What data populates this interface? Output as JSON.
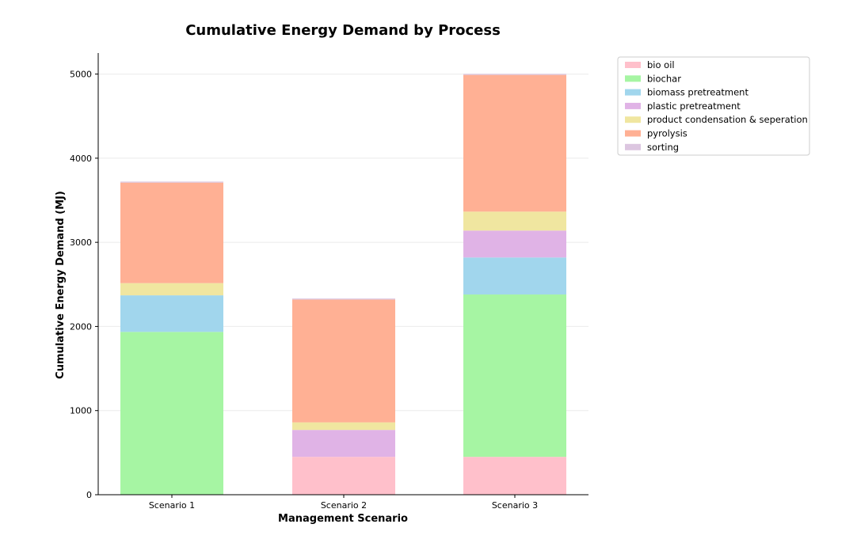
{
  "chart_data": {
    "type": "bar",
    "stacked": true,
    "title": "Cumulative Energy Demand by Process",
    "xlabel": "Management Scenario",
    "ylabel": "Cumulative Energy Demand (MJ)",
    "categories": [
      "Scenario 1",
      "Scenario 2",
      "Scenario 3"
    ],
    "ylim": [
      0,
      5250
    ],
    "yticks": [
      0,
      1000,
      2000,
      3000,
      4000,
      5000
    ],
    "grid": "horizontal",
    "legend_position": "outside-top-right",
    "series": [
      {
        "name": "bio oil",
        "color": "#ffc0cb",
        "values": [
          0,
          450,
          450
        ]
      },
      {
        "name": "biochar",
        "color": "#a6f5a3",
        "values": [
          1935,
          0,
          1930
        ]
      },
      {
        "name": "biomass pretreatment",
        "color": "#a1d6ed",
        "values": [
          435,
          0,
          440
        ]
      },
      {
        "name": "plastic pretreatment",
        "color": "#e0b3e6",
        "values": [
          0,
          320,
          320
        ]
      },
      {
        "name": "product condensation & seperation",
        "color": "#f0e6a0",
        "values": [
          145,
          90,
          225
        ]
      },
      {
        "name": "pyrolysis",
        "color": "#ffb094",
        "values": [
          1195,
          1460,
          1625
        ]
      },
      {
        "name": "sorting",
        "color": "#dcc6e0",
        "values": [
          12,
          12,
          12
        ]
      }
    ]
  }
}
